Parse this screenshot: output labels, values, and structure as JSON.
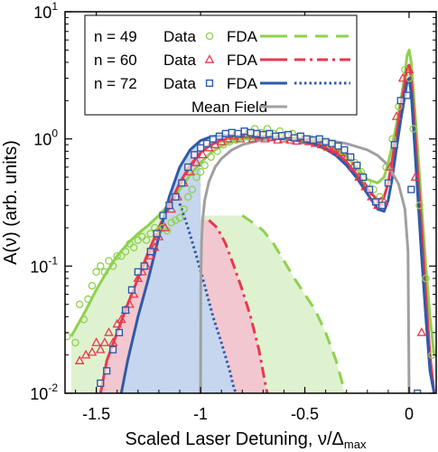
{
  "chart_data": {
    "type": "line",
    "xlabel": "Scaled Laser Detuning, ν/Δ",
    "xlabel_sub": "max",
    "ylabel": "A(ν) (arb. units)",
    "xlim": [
      -1.65,
      0.13
    ],
    "ylim": [
      0.01,
      10
    ],
    "yscale": "log",
    "grid": false,
    "legend_position": "top",
    "x_ticks": [
      {
        "value": -1.5,
        "label": "-1.5"
      },
      {
        "value": -1,
        "label": "-1"
      },
      {
        "value": -0.5,
        "label": "-0.5"
      },
      {
        "value": 0,
        "label": "0"
      }
    ],
    "y_ticks": [
      {
        "value": 0.01,
        "base": "10",
        "exp": "-2"
      },
      {
        "value": 0.1,
        "base": "10",
        "exp": "-1"
      },
      {
        "value": 1,
        "base": "10",
        "exp": "0"
      },
      {
        "value": 10,
        "base": "10",
        "exp": "1"
      }
    ],
    "legend": [
      {
        "n_label": "n = 49",
        "data_label": "Data",
        "fda_label": "FDA",
        "marker": "circle",
        "color": "#8fd14f",
        "dash": "long-dash"
      },
      {
        "n_label": "n = 60",
        "data_label": "Data",
        "fda_label": "FDA",
        "marker": "triangle",
        "color": "#e8384f",
        "dash": "dash-dot"
      },
      {
        "n_label": "n = 72",
        "data_label": "Data",
        "fda_label": "FDA",
        "marker": "square",
        "color": "#2f5aa8",
        "dash": "dotted"
      },
      {
        "label": "Mean Field",
        "color": "#a0a0a0"
      }
    ],
    "series": [
      {
        "name": "n = 49",
        "color": "#8fd14f",
        "fill": "#dff2cf",
        "fda_x": [
          -1.62,
          -1.55,
          -1.5,
          -1.45,
          -1.4,
          -1.35,
          -1.3,
          -1.25,
          -1.2,
          -1.15,
          -1.1,
          -1.05,
          -1.0,
          -0.95,
          -0.9,
          -0.85,
          -0.8,
          -0.75,
          -0.7,
          -0.65,
          -0.6,
          -0.55,
          -0.5,
          -0.45,
          -0.4,
          -0.35,
          -0.3,
          -0.25,
          -0.2,
          -0.15,
          -0.12,
          -0.1,
          -0.08,
          -0.06,
          -0.04,
          -0.02,
          -0.01,
          0.0,
          0.01,
          0.02,
          0.04,
          0.06,
          0.08,
          0.1,
          0.12
        ],
        "fda_y": [
          0.028,
          0.045,
          0.065,
          0.09,
          0.12,
          0.15,
          0.18,
          0.21,
          0.25,
          0.31,
          0.4,
          0.52,
          0.65,
          0.78,
          0.88,
          0.95,
          1.0,
          1.0,
          1.02,
          1.0,
          1.01,
          1.0,
          0.98,
          0.95,
          0.9,
          0.82,
          0.72,
          0.6,
          0.48,
          0.45,
          0.5,
          0.65,
          0.9,
          1.3,
          2.0,
          3.2,
          4.5,
          5.0,
          4.0,
          2.5,
          0.9,
          0.3,
          0.1,
          0.04,
          0.02
        ],
        "data_x": [
          -1.64,
          -1.6,
          -1.58,
          -1.56,
          -1.54,
          -1.52,
          -1.5,
          -1.48,
          -1.46,
          -1.44,
          -1.42,
          -1.4,
          -1.38,
          -1.36,
          -1.34,
          -1.32,
          -1.3,
          -1.28,
          -1.26,
          -1.24,
          -1.22,
          -1.2,
          -1.18,
          -1.16,
          -1.14,
          -1.12,
          -1.1,
          -1.08,
          -1.06,
          -1.04,
          -1.02,
          -1.0,
          -0.98,
          -0.95,
          -0.92,
          -0.89,
          -0.86,
          -0.83,
          -0.8,
          -0.77,
          -0.74,
          -0.71,
          -0.68,
          -0.65,
          -0.62,
          -0.59,
          -0.56,
          -0.53,
          -0.5,
          -0.47,
          -0.44,
          -0.41,
          -0.38,
          -0.35,
          -0.32,
          -0.29,
          -0.26,
          -0.23,
          -0.2,
          -0.17,
          -0.14,
          -0.11,
          -0.08,
          -0.05,
          -0.02,
          0.0,
          0.02,
          0.05,
          0.08,
          0.11
        ],
        "data_y": [
          0.028,
          0.025,
          0.05,
          0.038,
          0.055,
          0.07,
          0.09,
          0.1,
          0.09,
          0.11,
          0.1,
          0.12,
          0.12,
          0.13,
          0.15,
          0.14,
          0.16,
          0.17,
          0.16,
          0.18,
          0.2,
          0.19,
          0.2,
          0.19,
          0.22,
          0.23,
          0.24,
          0.28,
          0.35,
          0.4,
          0.5,
          0.55,
          0.62,
          0.72,
          0.8,
          0.9,
          0.95,
          0.98,
          1.05,
          1.1,
          1.2,
          1.12,
          1.2,
          1.1,
          1.15,
          1.05,
          1.1,
          1.05,
          1.0,
          1.0,
          0.98,
          0.95,
          0.9,
          0.88,
          0.8,
          0.72,
          0.65,
          0.55,
          0.45,
          0.4,
          0.35,
          0.6,
          1.0,
          1.8,
          3.5,
          3.0,
          1.2,
          0.3,
          0.08,
          0.02
        ]
      },
      {
        "name": "n = 60",
        "color": "#e8384f",
        "fill": "#f3c7cf",
        "fda_x": [
          -1.48,
          -1.45,
          -1.4,
          -1.35,
          -1.3,
          -1.25,
          -1.2,
          -1.15,
          -1.1,
          -1.05,
          -1.0,
          -0.95,
          -0.9,
          -0.85,
          -0.8,
          -0.75,
          -0.7,
          -0.65,
          -0.6,
          -0.55,
          -0.5,
          -0.45,
          -0.4,
          -0.35,
          -0.3,
          -0.25,
          -0.2,
          -0.15,
          -0.12,
          -0.1,
          -0.08,
          -0.06,
          -0.04,
          -0.02,
          -0.01,
          0.0,
          0.01,
          0.02,
          0.04,
          0.06,
          0.08,
          0.1,
          0.12
        ],
        "fda_y": [
          0.01,
          0.018,
          0.03,
          0.05,
          0.08,
          0.13,
          0.2,
          0.3,
          0.45,
          0.62,
          0.78,
          0.9,
          0.98,
          1.02,
          1.04,
          1.04,
          1.03,
          1.02,
          1.01,
          1.0,
          0.97,
          0.93,
          0.87,
          0.78,
          0.66,
          0.52,
          0.4,
          0.33,
          0.35,
          0.45,
          0.7,
          1.1,
          1.8,
          2.8,
          3.6,
          3.8,
          3.0,
          1.8,
          0.6,
          0.2,
          0.06,
          0.02,
          0.01
        ],
        "data_x": [
          -1.58,
          -1.55,
          -1.52,
          -1.5,
          -1.48,
          -1.46,
          -1.44,
          -1.42,
          -1.4,
          -1.38,
          -1.36,
          -1.34,
          -1.32,
          -1.3,
          -1.28,
          -1.26,
          -1.24,
          -1.22,
          -1.2,
          -1.17,
          -1.14,
          -1.11,
          -1.08,
          -1.05,
          -1.02,
          -0.99,
          -0.96,
          -0.93,
          -0.9,
          -0.87,
          -0.84,
          -0.81,
          -0.78,
          -0.75,
          -0.72,
          -0.69,
          -0.66,
          -0.63,
          -0.6,
          -0.57,
          -0.54,
          -0.51,
          -0.48,
          -0.45,
          -0.42,
          -0.39,
          -0.36,
          -0.33,
          -0.3,
          -0.27,
          -0.24,
          -0.21,
          -0.18,
          -0.15,
          -0.12,
          -0.09,
          -0.06,
          -0.03,
          0.0,
          0.03,
          0.06
        ],
        "data_y": [
          0.018,
          0.02,
          0.021,
          0.025,
          0.022,
          0.025,
          0.03,
          0.025,
          0.035,
          0.038,
          0.045,
          0.05,
          0.06,
          0.08,
          0.09,
          0.1,
          0.12,
          0.14,
          0.17,
          0.2,
          0.28,
          0.35,
          0.45,
          0.55,
          0.65,
          0.75,
          0.85,
          0.9,
          0.95,
          1.0,
          1.05,
          1.0,
          1.08,
          1.0,
          1.05,
          1.0,
          1.02,
          0.98,
          1.0,
          0.98,
          0.96,
          0.97,
          0.95,
          0.92,
          0.9,
          0.86,
          0.82,
          0.78,
          0.72,
          0.6,
          0.5,
          0.42,
          0.35,
          0.3,
          0.32,
          0.6,
          1.5,
          3.0,
          3.5,
          0.5,
          0.03
        ]
      },
      {
        "name": "n = 72",
        "color": "#2f5aa8",
        "fill": "#c5d6ee",
        "fda_x": [
          -1.38,
          -1.35,
          -1.3,
          -1.25,
          -1.2,
          -1.15,
          -1.1,
          -1.05,
          -1.0,
          -0.95,
          -0.9,
          -0.85,
          -0.8,
          -0.75,
          -0.7,
          -0.65,
          -0.6,
          -0.55,
          -0.5,
          -0.45,
          -0.4,
          -0.35,
          -0.3,
          -0.25,
          -0.2,
          -0.15,
          -0.12,
          -0.1,
          -0.08,
          -0.06,
          -0.04,
          -0.02,
          -0.01,
          0.0,
          0.01,
          0.02,
          0.04,
          0.06,
          0.08,
          0.1,
          0.12
        ],
        "fda_y": [
          0.01,
          0.018,
          0.04,
          0.08,
          0.17,
          0.35,
          0.6,
          0.82,
          0.97,
          1.04,
          1.06,
          1.06,
          1.05,
          1.04,
          1.03,
          1.02,
          1.0,
          0.98,
          0.95,
          0.9,
          0.83,
          0.74,
          0.62,
          0.49,
          0.37,
          0.28,
          0.27,
          0.33,
          0.5,
          0.85,
          1.4,
          2.2,
          2.8,
          3.0,
          2.3,
          1.3,
          0.4,
          0.12,
          0.04,
          0.015,
          0.01
        ],
        "data_x": [
          -1.48,
          -1.45,
          -1.42,
          -1.39,
          -1.36,
          -1.33,
          -1.3,
          -1.27,
          -1.24,
          -1.21,
          -1.18,
          -1.15,
          -1.12,
          -1.09,
          -1.06,
          -1.03,
          -1.0,
          -0.97,
          -0.94,
          -0.91,
          -0.88,
          -0.85,
          -0.82,
          -0.79,
          -0.76,
          -0.73,
          -0.7,
          -0.67,
          -0.64,
          -0.61,
          -0.58,
          -0.55,
          -0.52,
          -0.49,
          -0.46,
          -0.43,
          -0.4,
          -0.37,
          -0.34,
          -0.31,
          -0.28,
          -0.25,
          -0.22,
          -0.19,
          -0.16,
          -0.13,
          -0.1,
          -0.07,
          -0.04,
          -0.01,
          0.01,
          0.04
        ],
        "data_y": [
          0.012,
          0.015,
          0.022,
          0.03,
          0.045,
          0.065,
          0.09,
          0.1,
          0.13,
          0.18,
          0.25,
          0.3,
          0.35,
          0.45,
          0.6,
          0.75,
          0.85,
          0.92,
          1.0,
          1.05,
          1.1,
          1.12,
          1.1,
          1.15,
          1.12,
          1.1,
          1.08,
          1.1,
          1.05,
          1.06,
          1.08,
          1.02,
          1.05,
          1.0,
          0.98,
          1.0,
          0.95,
          0.92,
          0.88,
          0.82,
          0.72,
          0.62,
          0.5,
          0.4,
          0.32,
          0.3,
          0.45,
          0.9,
          2.0,
          2.2,
          0.4,
          0.01
        ]
      }
    ],
    "mean_field": {
      "name": "Mean Field",
      "color": "#a0a0a0",
      "x": [
        -1.0,
        -0.999,
        -0.995,
        -0.99,
        -0.98,
        -0.96,
        -0.93,
        -0.9,
        -0.85,
        -0.8,
        -0.7,
        -0.6,
        -0.5,
        -0.4,
        -0.3,
        -0.2,
        -0.15,
        -0.1,
        -0.05,
        -0.02,
        -0.005,
        0.0
      ],
      "y": [
        0.01,
        0.07,
        0.16,
        0.23,
        0.33,
        0.46,
        0.6,
        0.7,
        0.82,
        0.9,
        0.99,
        1.02,
        1.01,
        0.98,
        0.92,
        0.82,
        0.74,
        0.62,
        0.44,
        0.28,
        0.13,
        0.01
      ]
    },
    "tails": [
      {
        "name": "n = 49",
        "color": "#8fd14f",
        "fill": "#dff2cf",
        "dash": "long-dash",
        "x": [
          -0.8,
          -0.75,
          -0.7,
          -0.65,
          -0.6,
          -0.55,
          -0.5,
          -0.45,
          -0.4,
          -0.35,
          -0.32,
          -0.31
        ],
        "y": [
          0.25,
          0.22,
          0.19,
          0.15,
          0.11,
          0.08,
          0.06,
          0.045,
          0.03,
          0.018,
          0.012,
          0.01
        ]
      },
      {
        "name": "n = 60",
        "color": "#e8384f",
        "fill": "#f3c7cf",
        "dash": "dash-dot",
        "x": [
          -0.96,
          -0.92,
          -0.88,
          -0.84,
          -0.8,
          -0.76,
          -0.72,
          -0.69,
          -0.68
        ],
        "y": [
          0.23,
          0.2,
          0.15,
          0.1,
          0.065,
          0.04,
          0.022,
          0.012,
          0.01
        ],
        "left_edge_x": -1.0
      },
      {
        "name": "n = 72",
        "color": "#2f5aa8",
        "fill": "#c5d6ee",
        "dash": "dotted",
        "x": [
          -1.1,
          -1.06,
          -1.02,
          -0.98,
          -0.94,
          -0.9,
          -0.86,
          -0.84,
          -0.83
        ],
        "y": [
          0.31,
          0.2,
          0.12,
          0.07,
          0.04,
          0.025,
          0.015,
          0.011,
          0.01
        ]
      }
    ]
  }
}
